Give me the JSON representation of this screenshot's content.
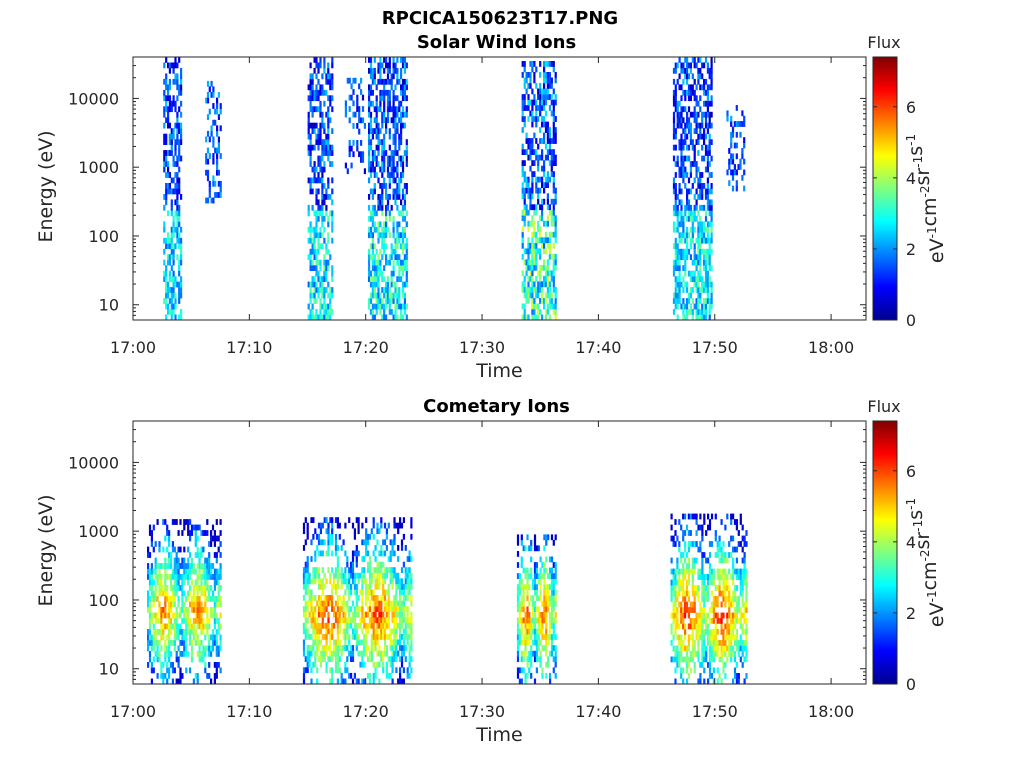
{
  "figure": {
    "title": "RPCICA150623T17.PNG",
    "panel_titles": [
      "Solar Wind Ions",
      "Cometary Ions"
    ]
  },
  "chart_data": [
    {
      "type": "heatmap",
      "title": "Solar Wind Ions",
      "xlabel": "Time",
      "ylabel": "Energy (eV)",
      "x_ticks": [
        "17:00",
        "17:10",
        "17:20",
        "17:30",
        "17:40",
        "17:50",
        "18:00"
      ],
      "xlim_minutes": [
        0,
        63
      ],
      "y_scale": "log",
      "y_ticks": [
        10,
        100,
        1000,
        10000
      ],
      "ylim": [
        6,
        40000
      ],
      "colorbar": {
        "label": "Flux",
        "unit": "eV-1cm-2sr-1s-1",
        "ticks": [
          0,
          2,
          4,
          6
        ],
        "range": [
          0,
          7.4
        ],
        "colormap": "jet"
      },
      "bursts": [
        {
          "t0": 2.6,
          "t1": 4.2,
          "emin": 6,
          "emax": 40000,
          "fmin": 0.4,
          "fmax": 3.2,
          "lowE_max": 3.4,
          "density": 0.55
        },
        {
          "t0": 6.2,
          "t1": 7.6,
          "emin": 300,
          "emax": 18000,
          "fmin": 0.8,
          "fmax": 3.0,
          "lowE_max": 3.0,
          "density": 0.35
        },
        {
          "t0": 15.0,
          "t1": 17.2,
          "emin": 6,
          "emax": 40000,
          "fmin": 0.4,
          "fmax": 3.2,
          "lowE_max": 3.6,
          "density": 0.55
        },
        {
          "t0": 18.2,
          "t1": 20.0,
          "emin": 800,
          "emax": 20000,
          "fmin": 0.5,
          "fmax": 2.8,
          "lowE_max": 2.8,
          "density": 0.3
        },
        {
          "t0": 20.2,
          "t1": 23.6,
          "emin": 6,
          "emax": 40000,
          "fmin": 0.4,
          "fmax": 3.4,
          "lowE_max": 3.8,
          "density": 0.55
        },
        {
          "t0": 33.4,
          "t1": 36.4,
          "emin": 6,
          "emax": 35000,
          "fmin": 0.4,
          "fmax": 3.6,
          "lowE_max": 4.4,
          "density": 0.55
        },
        {
          "t0": 46.4,
          "t1": 49.8,
          "emin": 6,
          "emax": 40000,
          "fmin": 0.4,
          "fmax": 3.2,
          "lowE_max": 3.6,
          "density": 0.55
        },
        {
          "t0": 51.0,
          "t1": 52.6,
          "emin": 450,
          "emax": 8000,
          "fmin": 0.8,
          "fmax": 2.8,
          "lowE_max": 2.8,
          "density": 0.3
        }
      ]
    },
    {
      "type": "heatmap",
      "title": "Cometary Ions",
      "xlabel": "Time",
      "ylabel": "Energy (eV)",
      "x_ticks": [
        "17:00",
        "17:10",
        "17:20",
        "17:30",
        "17:40",
        "17:50",
        "18:00"
      ],
      "xlim_minutes": [
        0,
        63
      ],
      "y_scale": "log",
      "y_ticks": [
        10,
        100,
        1000,
        10000
      ],
      "ylim": [
        6,
        40000
      ],
      "colorbar": {
        "label": "Flux",
        "unit": "eV-1cm-2sr-1s-1",
        "ticks": [
          0,
          2,
          4,
          6
        ],
        "range": [
          0,
          7.4
        ],
        "colormap": "jet"
      },
      "bursts": [
        {
          "t0": 1.2,
          "t1": 7.6,
          "emin": 6,
          "emax": 1500,
          "core": 70,
          "peak": 6.2,
          "density": 0.6
        },
        {
          "t0": 14.6,
          "t1": 24.0,
          "emin": 6,
          "emax": 1600,
          "core": 60,
          "peak": 6.6,
          "density": 0.6
        },
        {
          "t0": 33.0,
          "t1": 36.4,
          "emin": 6,
          "emax": 900,
          "core": 60,
          "peak": 6.4,
          "density": 0.6
        },
        {
          "t0": 46.2,
          "t1": 52.8,
          "emin": 6,
          "emax": 1800,
          "core": 60,
          "peak": 6.8,
          "density": 0.6
        }
      ]
    }
  ]
}
